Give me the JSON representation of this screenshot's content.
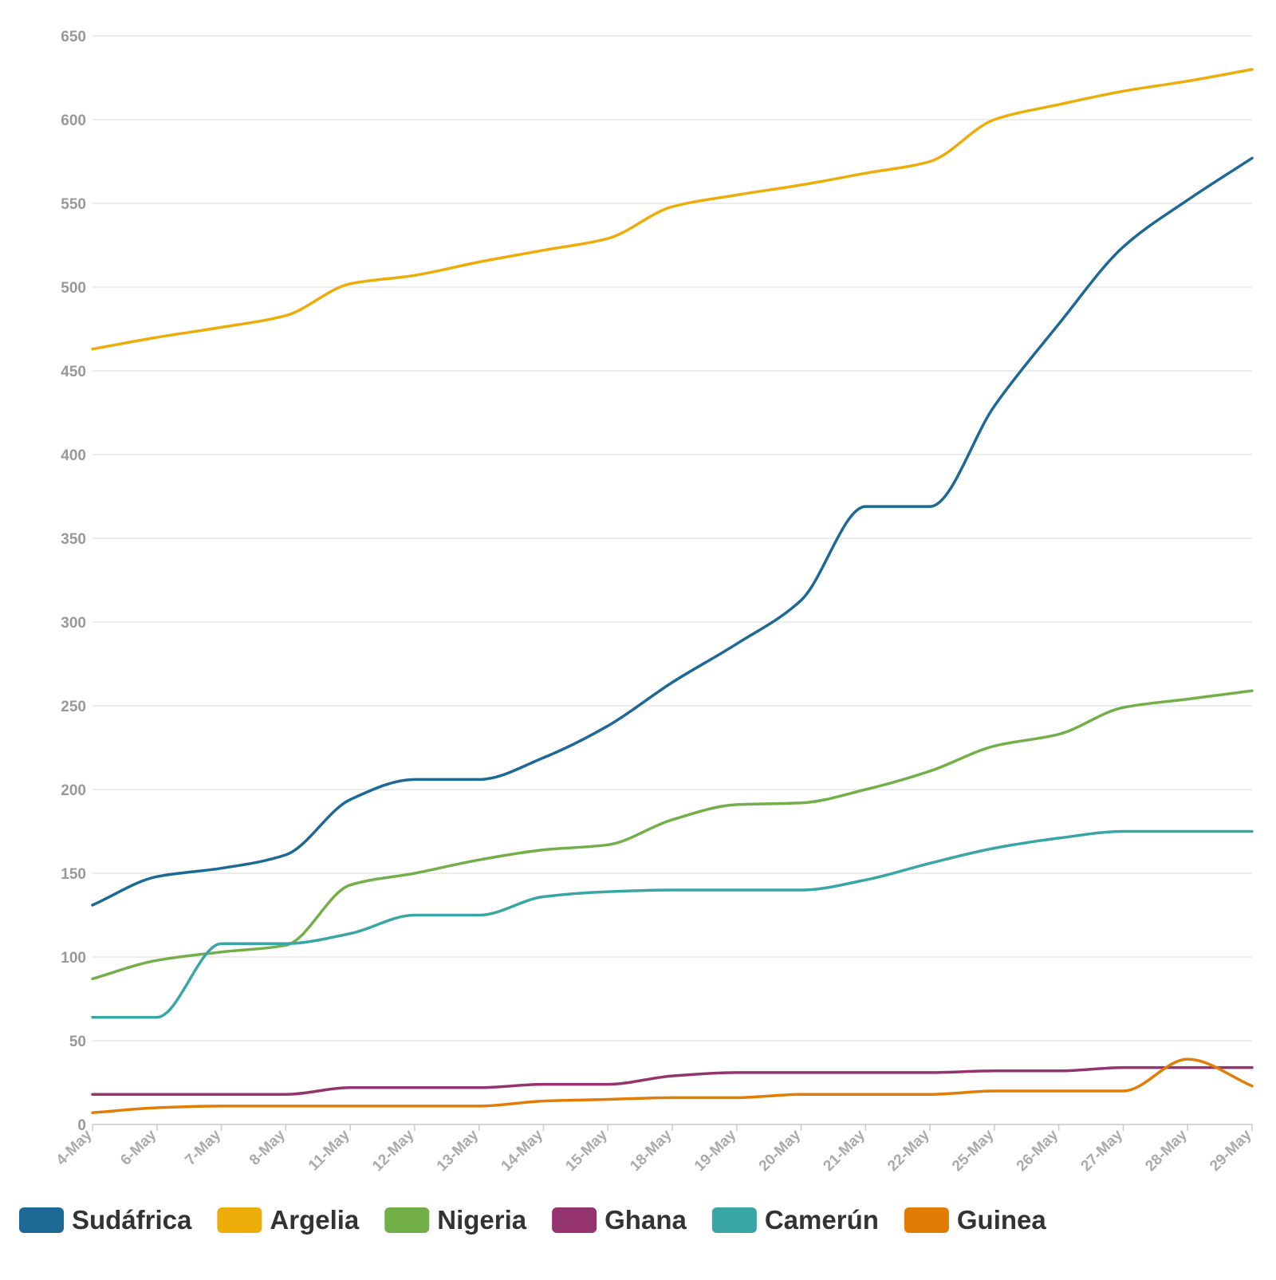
{
  "chart_data": {
    "type": "line",
    "title": "",
    "xlabel": "",
    "ylabel": "",
    "ylim": [
      0,
      650
    ],
    "yticks": [
      0,
      50,
      100,
      150,
      200,
      250,
      300,
      350,
      400,
      450,
      500,
      550,
      600,
      650
    ],
    "grid": true,
    "legend_position": "bottom",
    "x": [
      "4-May",
      "6-May",
      "7-May",
      "8-May",
      "11-May",
      "12-May",
      "13-May",
      "14-May",
      "15-May",
      "18-May",
      "19-May",
      "20-May",
      "21-May",
      "22-May",
      "25-May",
      "26-May",
      "27-May",
      "28-May",
      "29-May"
    ],
    "series": [
      {
        "name": "Sudáfrica",
        "color": "#1d6996",
        "values": [
          131,
          148,
          153,
          161,
          194,
          206,
          206,
          219,
          238,
          264,
          287,
          313,
          369,
          369,
          429,
          478,
          524,
          552,
          577
        ]
      },
      {
        "name": "Argelia",
        "color": "#edad08",
        "values": [
          463,
          470,
          476,
          483,
          502,
          507,
          515,
          522,
          529,
          548,
          555,
          561,
          568,
          575,
          600,
          609,
          617,
          623,
          630
        ]
      },
      {
        "name": "Nigeria",
        "color": "#73af48",
        "values": [
          87,
          98,
          103,
          107,
          143,
          150,
          158,
          164,
          167,
          182,
          191,
          192,
          200,
          211,
          226,
          233,
          249,
          254,
          259
        ]
      },
      {
        "name": "Ghana",
        "color": "#94346e",
        "values": [
          18,
          18,
          18,
          18,
          22,
          22,
          22,
          24,
          24,
          29,
          31,
          31,
          31,
          31,
          32,
          32,
          34,
          34,
          34
        ]
      },
      {
        "name": "Camerún",
        "color": "#38a6a5",
        "values": [
          64,
          64,
          108,
          108,
          114,
          125,
          125,
          136,
          139,
          140,
          140,
          140,
          146,
          156,
          165,
          171,
          175,
          175,
          175
        ]
      },
      {
        "name": "Guinea",
        "color": "#e17c05",
        "values": [
          7,
          10,
          11,
          11,
          11,
          11,
          11,
          14,
          15,
          16,
          16,
          18,
          18,
          18,
          20,
          20,
          20,
          39,
          23
        ]
      }
    ]
  }
}
